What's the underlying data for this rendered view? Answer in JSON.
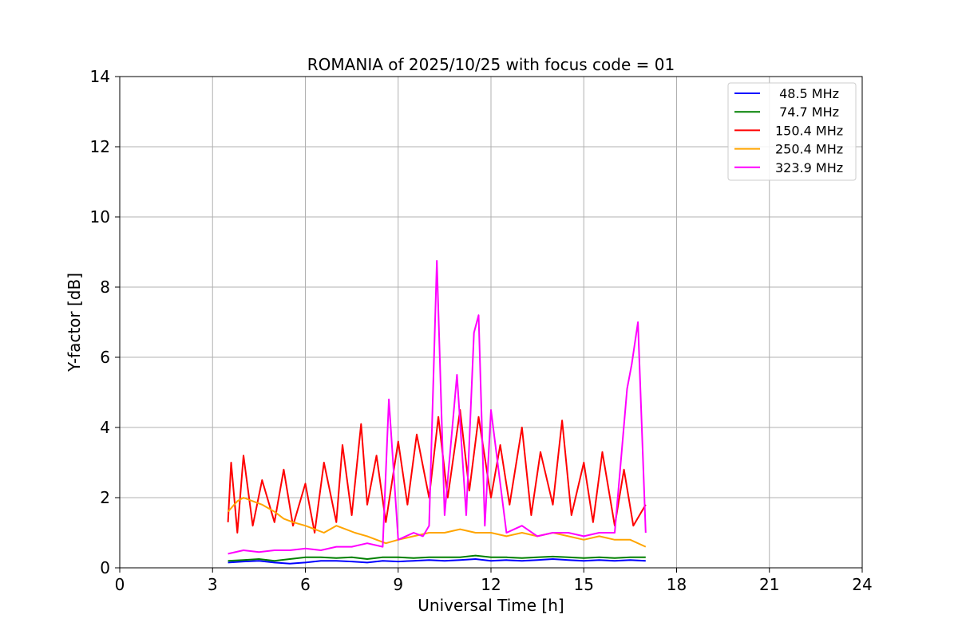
{
  "chart_data": {
    "type": "line",
    "title": "ROMANIA of 2025/10/25 with focus code = 01",
    "xlabel": "Universal Time [h]",
    "ylabel": "Y-factor [dB]",
    "xlim": [
      0,
      24
    ],
    "ylim": [
      0,
      14
    ],
    "xticks": [
      0,
      3,
      6,
      9,
      12,
      15,
      18,
      21,
      24
    ],
    "yticks": [
      0,
      2,
      4,
      6,
      8,
      10,
      12,
      14
    ],
    "grid": true,
    "legend_position": "top-right",
    "series": [
      {
        "name": " 48.5 MHz",
        "color": "#0000ff",
        "x": [
          3.5,
          4.0,
          4.5,
          5.0,
          5.5,
          6.0,
          6.5,
          7.0,
          7.5,
          8.0,
          8.5,
          9.0,
          9.5,
          10.0,
          10.5,
          11.0,
          11.5,
          12.0,
          12.5,
          13.0,
          13.5,
          14.0,
          14.5,
          15.0,
          15.5,
          16.0,
          16.5,
          17.0
        ],
        "y": [
          0.15,
          0.18,
          0.2,
          0.15,
          0.12,
          0.15,
          0.2,
          0.2,
          0.18,
          0.15,
          0.2,
          0.18,
          0.2,
          0.22,
          0.2,
          0.22,
          0.25,
          0.2,
          0.22,
          0.2,
          0.22,
          0.25,
          0.22,
          0.2,
          0.22,
          0.2,
          0.22,
          0.2
        ]
      },
      {
        "name": " 74.7 MHz",
        "color": "#008000",
        "x": [
          3.5,
          4.0,
          4.5,
          5.0,
          5.5,
          6.0,
          6.5,
          7.0,
          7.5,
          8.0,
          8.5,
          9.0,
          9.5,
          10.0,
          10.5,
          11.0,
          11.5,
          12.0,
          12.5,
          13.0,
          13.5,
          14.0,
          14.5,
          15.0,
          15.5,
          16.0,
          16.5,
          17.0
        ],
        "y": [
          0.2,
          0.22,
          0.25,
          0.2,
          0.25,
          0.3,
          0.3,
          0.28,
          0.3,
          0.25,
          0.3,
          0.3,
          0.28,
          0.3,
          0.3,
          0.3,
          0.35,
          0.3,
          0.3,
          0.28,
          0.3,
          0.32,
          0.3,
          0.28,
          0.3,
          0.28,
          0.3,
          0.3
        ]
      },
      {
        "name": "150.4 MHz",
        "color": "#ff0000",
        "x": [
          3.5,
          3.6,
          3.8,
          4.0,
          4.3,
          4.6,
          5.0,
          5.3,
          5.6,
          6.0,
          6.3,
          6.6,
          7.0,
          7.2,
          7.5,
          7.8,
          8.0,
          8.3,
          8.6,
          9.0,
          9.3,
          9.6,
          10.0,
          10.3,
          10.6,
          11.0,
          11.3,
          11.6,
          12.0,
          12.3,
          12.6,
          13.0,
          13.3,
          13.6,
          14.0,
          14.3,
          14.6,
          15.0,
          15.3,
          15.6,
          16.0,
          16.3,
          16.6,
          17.0
        ],
        "y": [
          1.3,
          3.0,
          1.0,
          3.2,
          1.2,
          2.5,
          1.3,
          2.8,
          1.2,
          2.4,
          1.0,
          3.0,
          1.3,
          3.5,
          1.5,
          4.1,
          1.8,
          3.2,
          1.3,
          3.6,
          1.8,
          3.8,
          2.0,
          4.3,
          2.0,
          4.5,
          2.2,
          4.3,
          2.0,
          3.5,
          1.8,
          4.0,
          1.5,
          3.3,
          1.8,
          4.2,
          1.5,
          3.0,
          1.3,
          3.3,
          1.2,
          2.8,
          1.2,
          1.8
        ]
      },
      {
        "name": "250.4 MHz",
        "color": "#ffa500",
        "x": [
          3.5,
          3.8,
          4.0,
          4.3,
          4.6,
          5.0,
          5.3,
          5.6,
          6.0,
          6.3,
          6.6,
          7.0,
          7.3,
          7.6,
          8.0,
          8.3,
          8.6,
          9.0,
          9.5,
          10.0,
          10.5,
          11.0,
          11.5,
          12.0,
          12.5,
          13.0,
          13.5,
          14.0,
          14.5,
          15.0,
          15.5,
          16.0,
          16.5,
          17.0
        ],
        "y": [
          1.6,
          1.9,
          2.0,
          1.9,
          1.8,
          1.6,
          1.4,
          1.3,
          1.2,
          1.1,
          1.0,
          1.2,
          1.1,
          1.0,
          0.9,
          0.8,
          0.7,
          0.8,
          0.9,
          1.0,
          1.0,
          1.1,
          1.0,
          1.0,
          0.9,
          1.0,
          0.9,
          1.0,
          0.9,
          0.8,
          0.9,
          0.8,
          0.8,
          0.6
        ]
      },
      {
        "name": "323.9 MHz",
        "color": "#ff00ff",
        "x": [
          3.5,
          4.0,
          4.5,
          5.0,
          5.5,
          6.0,
          6.5,
          7.0,
          7.5,
          8.0,
          8.5,
          8.7,
          9.0,
          9.5,
          9.8,
          10.0,
          10.25,
          10.5,
          10.9,
          11.2,
          11.45,
          11.6,
          11.8,
          12.0,
          12.5,
          13.0,
          13.5,
          14.0,
          14.5,
          15.0,
          15.5,
          16.0,
          16.4,
          16.55,
          16.75,
          17.0
        ],
        "y": [
          0.4,
          0.5,
          0.45,
          0.5,
          0.5,
          0.55,
          0.5,
          0.6,
          0.6,
          0.7,
          0.6,
          4.8,
          0.8,
          1.0,
          0.9,
          1.2,
          8.75,
          1.5,
          5.5,
          1.5,
          6.7,
          7.2,
          1.2,
          4.5,
          1.0,
          1.2,
          0.9,
          1.0,
          1.0,
          0.9,
          1.0,
          1.0,
          5.1,
          5.8,
          7.0,
          1.0
        ]
      }
    ]
  }
}
